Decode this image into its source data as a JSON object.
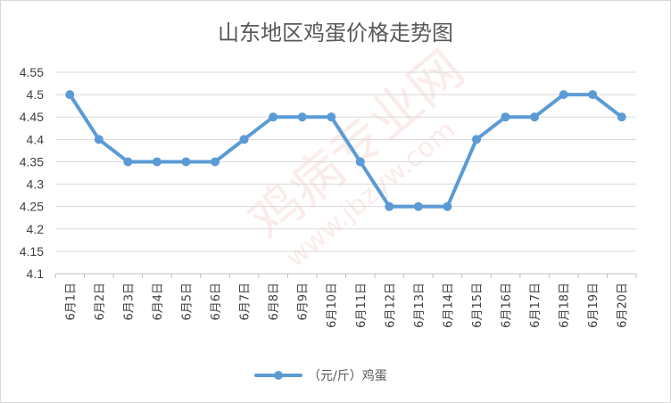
{
  "chart_data": {
    "type": "line",
    "title": "山东地区鸡蛋价格走势图",
    "categories": [
      "6月1日",
      "6月2日",
      "6月3日",
      "6月4日",
      "6月5日",
      "6月6日",
      "6月7日",
      "6月8日",
      "6月9日",
      "6月10日",
      "6月11日",
      "6月12日",
      "6月13日",
      "6月14日",
      "6月15日",
      "6月16日",
      "6月17日",
      "6月18日",
      "6月19日",
      "6月20日"
    ],
    "series": [
      {
        "name": "（元/斤）鸡蛋",
        "values": [
          4.5,
          4.4,
          4.35,
          4.35,
          4.35,
          4.35,
          4.4,
          4.45,
          4.45,
          4.45,
          4.35,
          4.25,
          4.25,
          4.25,
          4.4,
          4.45,
          4.45,
          4.5,
          4.5,
          4.45
        ],
        "color": "#5b9bd5"
      }
    ],
    "ylim": [
      4.1,
      4.55
    ],
    "yticks": [
      "4.1",
      "4.15",
      "4.2",
      "4.25",
      "4.3",
      "4.35",
      "4.4",
      "4.45",
      "4.5",
      "4.55"
    ],
    "grid": true,
    "legend": "bottom"
  },
  "watermark": {
    "main": "鸡病专业网",
    "url": "www.jbzyw.com"
  }
}
